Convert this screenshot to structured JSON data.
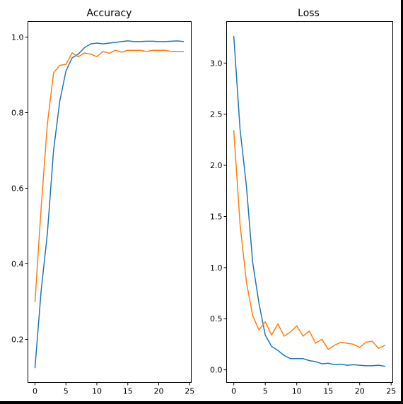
{
  "colors": {
    "series1": "#1f77b4",
    "series2": "#ff7f0e"
  },
  "chart_data": [
    {
      "type": "line",
      "title": "Accuracy",
      "xlabel": "",
      "ylabel": "",
      "xlim": [
        -1.2,
        25.2
      ],
      "ylim": [
        0.087,
        1.042
      ],
      "xticks": [
        0,
        5,
        10,
        15,
        20,
        25
      ],
      "yticks": [
        0.2,
        0.4,
        0.6,
        0.8,
        1.0
      ],
      "xtick_labels": [
        "0",
        "5",
        "10",
        "15",
        "20",
        "25"
      ],
      "ytick_labels": [
        "0.2",
        "0.4",
        "0.6",
        "0.8",
        "1.0"
      ],
      "grid": false,
      "x": [
        0,
        1,
        2,
        3,
        4,
        5,
        6,
        7,
        8,
        9,
        10,
        11,
        12,
        13,
        14,
        15,
        16,
        17,
        18,
        19,
        20,
        21,
        22,
        23,
        24
      ],
      "series": [
        {
          "color": "#1f77b4",
          "values": [
            0.125,
            0.33,
            0.48,
            0.7,
            0.83,
            0.91,
            0.945,
            0.955,
            0.972,
            0.982,
            0.984,
            0.982,
            0.984,
            0.986,
            0.988,
            0.99,
            0.988,
            0.988,
            0.989,
            0.989,
            0.988,
            0.988,
            0.989,
            0.99,
            0.988
          ]
        },
        {
          "color": "#ff7f0e",
          "values": [
            0.3,
            0.55,
            0.77,
            0.905,
            0.925,
            0.928,
            0.958,
            0.948,
            0.958,
            0.955,
            0.948,
            0.962,
            0.957,
            0.965,
            0.96,
            0.965,
            0.965,
            0.965,
            0.962,
            0.965,
            0.965,
            0.965,
            0.962,
            0.962,
            0.962
          ]
        }
      ]
    },
    {
      "type": "line",
      "title": "Loss",
      "xlabel": "",
      "ylabel": "",
      "xlim": [
        -1.2,
        25.2
      ],
      "ylim": [
        -0.12,
        3.41
      ],
      "xticks": [
        0,
        5,
        10,
        15,
        20,
        25
      ],
      "yticks": [
        0.0,
        0.5,
        1.0,
        1.5,
        2.0,
        2.5,
        3.0
      ],
      "xtick_labels": [
        "0",
        "5",
        "10",
        "15",
        "20",
        "25"
      ],
      "ytick_labels": [
        "0.0",
        "0.5",
        "1.0",
        "1.5",
        "2.0",
        "2.5",
        "3.0"
      ],
      "grid": false,
      "x": [
        0,
        1,
        2,
        3,
        4,
        5,
        6,
        7,
        8,
        9,
        10,
        11,
        12,
        13,
        14,
        15,
        16,
        17,
        18,
        19,
        20,
        21,
        22,
        23,
        24
      ],
      "series": [
        {
          "color": "#1f77b4",
          "values": [
            3.26,
            2.35,
            1.8,
            1.05,
            0.65,
            0.34,
            0.23,
            0.19,
            0.14,
            0.11,
            0.11,
            0.11,
            0.09,
            0.08,
            0.06,
            0.065,
            0.05,
            0.055,
            0.045,
            0.05,
            0.045,
            0.04,
            0.04,
            0.045,
            0.035
          ]
        },
        {
          "color": "#ff7f0e",
          "values": [
            2.34,
            1.42,
            0.86,
            0.53,
            0.39,
            0.47,
            0.34,
            0.45,
            0.33,
            0.37,
            0.43,
            0.33,
            0.38,
            0.26,
            0.3,
            0.2,
            0.24,
            0.27,
            0.26,
            0.25,
            0.22,
            0.27,
            0.28,
            0.21,
            0.24
          ]
        }
      ]
    }
  ]
}
